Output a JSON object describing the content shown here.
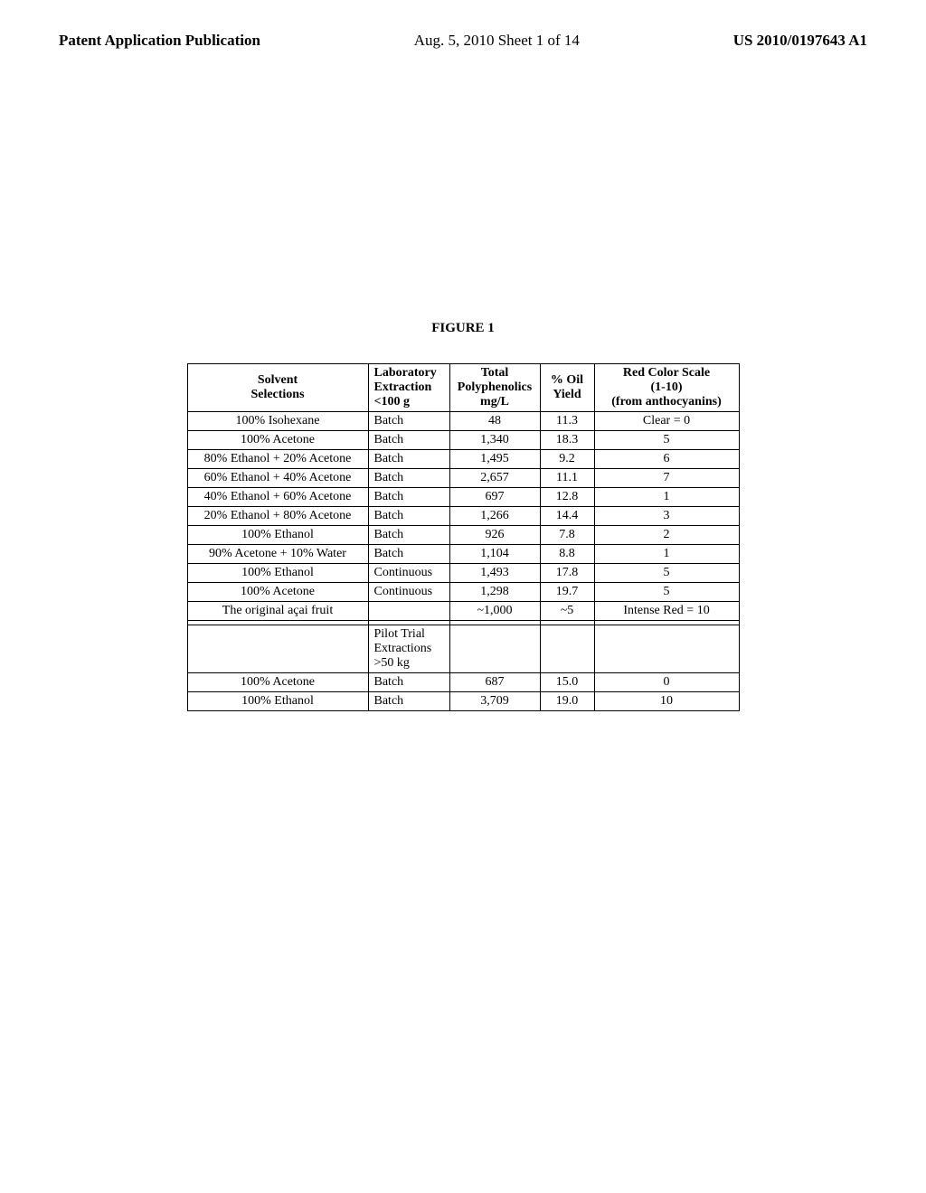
{
  "header": {
    "left": "Patent Application Publication",
    "center": "Aug. 5, 2010  Sheet 1 of 14",
    "right": "US 2010/0197643 A1"
  },
  "figure": {
    "title": "FIGURE 1"
  },
  "table": {
    "headers": {
      "solvent": "Solvent\nSelections",
      "extraction": "Laboratory\nExtraction\n<100 g",
      "polyphenolics": "Total\nPolyphenolics\nmg/L",
      "oil": "% Oil\nYield",
      "color": "Red Color Scale\n(1-10)\n(from anthocyanins)"
    },
    "rows": [
      {
        "solvent": "100% Isohexane",
        "extraction": "Batch",
        "polyphenolics": "48",
        "oil": "11.3",
        "color": "Clear = 0"
      },
      {
        "solvent": "100% Acetone",
        "extraction": "Batch",
        "polyphenolics": "1,340",
        "oil": "18.3",
        "color": "5"
      },
      {
        "solvent": "80% Ethanol + 20% Acetone",
        "extraction": "Batch",
        "polyphenolics": "1,495",
        "oil": "9.2",
        "color": "6"
      },
      {
        "solvent": "60% Ethanol + 40% Acetone",
        "extraction": "Batch",
        "polyphenolics": "2,657",
        "oil": "11.1",
        "color": "7"
      },
      {
        "solvent": "40% Ethanol + 60% Acetone",
        "extraction": "Batch",
        "polyphenolics": "697",
        "oil": "12.8",
        "color": "1"
      },
      {
        "solvent": "20% Ethanol + 80% Acetone",
        "extraction": "Batch",
        "polyphenolics": "1,266",
        "oil": "14.4",
        "color": "3"
      },
      {
        "solvent": "100% Ethanol",
        "extraction": "Batch",
        "polyphenolics": "926",
        "oil": "7.8",
        "color": "2"
      },
      {
        "solvent": "90% Acetone + 10% Water",
        "extraction": "Batch",
        "polyphenolics": "1,104",
        "oil": "8.8",
        "color": "1"
      },
      {
        "solvent": "100% Ethanol",
        "extraction": "Continuous",
        "polyphenolics": "1,493",
        "oil": "17.8",
        "color": "5"
      },
      {
        "solvent": "100% Acetone",
        "extraction": "Continuous",
        "polyphenolics": "1,298",
        "oil": "19.7",
        "color": "5"
      },
      {
        "solvent": "The original açai fruit",
        "extraction": "",
        "polyphenolics": "~1,000",
        "oil": "~5",
        "color": "Intense Red = 10"
      }
    ],
    "emptyRow": {
      "solvent": "",
      "extraction": "",
      "polyphenolics": "",
      "oil": "",
      "color": ""
    },
    "sectionHeader": {
      "solvent": "",
      "extraction": "Pilot Trial\nExtractions\n>50 kg",
      "polyphenolics": "",
      "oil": "",
      "color": ""
    },
    "rows2": [
      {
        "solvent": "100% Acetone",
        "extraction": "Batch",
        "polyphenolics": "687",
        "oil": "15.0",
        "color": "0"
      },
      {
        "solvent": "100% Ethanol",
        "extraction": "Batch",
        "polyphenolics": "3,709",
        "oil": "19.0",
        "color": "10"
      }
    ],
    "styling": {
      "border_color": "#000000",
      "background_color": "#ffffff",
      "font_size": 14,
      "header_font_weight": "bold",
      "column_widths": {
        "solvent": 200,
        "extraction": 90,
        "polyphenolics": 100,
        "oil": 60,
        "color": 160
      }
    }
  }
}
